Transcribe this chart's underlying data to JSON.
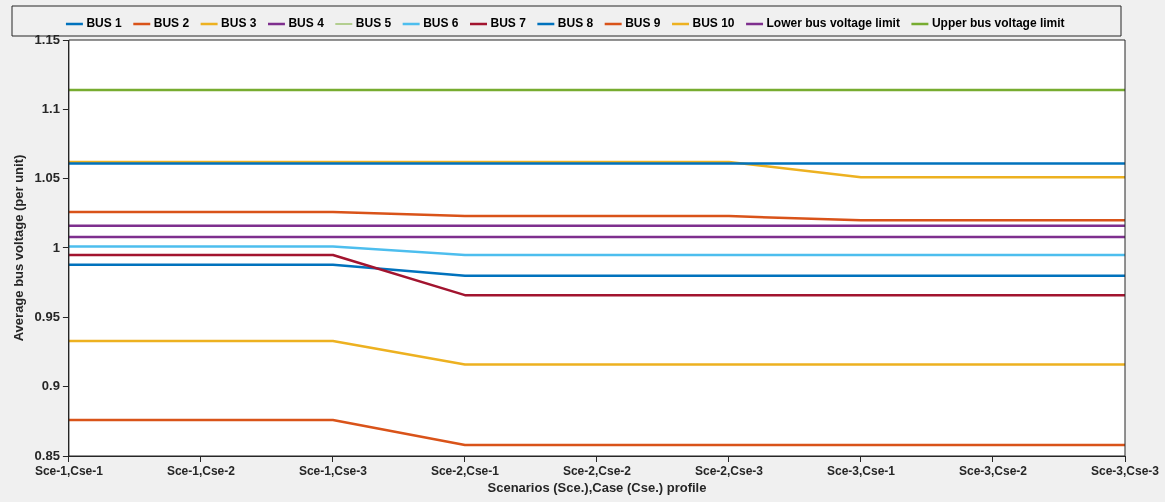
{
  "chart_data": {
    "type": "line",
    "xlabel": "Scenarios (Sce.),Case (Cse.) profile",
    "ylabel": "Average bus voltage (per unit)",
    "categories": [
      "Sce-1,Cse-1",
      "Sce-1,Cse-2",
      "Sce-1,Cse-3",
      "Sce-2,Cse-1",
      "Sce-2,Cse-2",
      "Sce-2,Cse-3",
      "Sce-3,Cse-1",
      "Sce-3,Cse-2",
      "Sce-3,Cse-3"
    ],
    "series": [
      {
        "name": "BUS 1",
        "color": "#0072bd",
        "values": [
          1.061,
          1.061,
          1.061,
          1.061,
          1.061,
          1.061,
          1.061,
          1.061,
          1.061
        ]
      },
      {
        "name": "BUS 2",
        "color": "#d95319",
        "values": [
          1.026,
          1.026,
          1.026,
          1.023,
          1.023,
          1.023,
          1.02,
          1.02,
          1.02
        ]
      },
      {
        "name": "BUS 3",
        "color": "#edb120",
        "values": [
          1.062,
          1.062,
          1.062,
          1.062,
          1.062,
          1.062,
          1.051,
          1.051,
          1.051
        ]
      },
      {
        "name": "BUS 4",
        "color": "#7e2f8e",
        "values": [
          1.016,
          1.016,
          1.016,
          1.016,
          1.016,
          1.016,
          1.016,
          1.016,
          1.016
        ]
      },
      {
        "name": "BUS 5",
        "color": "#77ac30",
        "values": [
          null,
          null,
          null,
          null,
          null,
          null,
          null,
          null,
          null
        ]
      },
      {
        "name": "BUS 6",
        "color": "#4dbeee",
        "values": [
          1.001,
          1.001,
          1.001,
          0.995,
          0.995,
          0.995,
          0.995,
          0.995,
          0.995
        ]
      },
      {
        "name": "BUS 7",
        "color": "#a2142f",
        "values": [
          0.995,
          0.995,
          0.995,
          0.966,
          0.966,
          0.966,
          0.966,
          0.966,
          0.966
        ]
      },
      {
        "name": "BUS 8",
        "color": "#0072bd",
        "values": [
          0.988,
          0.988,
          0.988,
          0.98,
          0.98,
          0.98,
          0.98,
          0.98,
          0.98
        ]
      },
      {
        "name": "BUS 9",
        "color": "#d95319",
        "values": [
          0.876,
          0.876,
          0.876,
          0.858,
          0.858,
          0.858,
          0.858,
          0.858,
          0.858
        ]
      },
      {
        "name": "BUS 10",
        "color": "#edb120",
        "values": [
          0.933,
          0.933,
          0.933,
          0.916,
          0.916,
          0.916,
          0.916,
          0.916,
          0.916
        ]
      },
      {
        "name": "Lower bus voltage limit",
        "color": "#7e2f8e",
        "values": [
          1.008,
          1.008,
          1.008,
          1.008,
          1.008,
          1.008,
          1.008,
          1.008,
          1.008
        ]
      },
      {
        "name": "Upper bus voltage limit",
        "color": "#77ac30",
        "values": [
          1.114,
          1.114,
          1.114,
          1.114,
          1.114,
          1.114,
          1.114,
          1.114,
          1.114
        ]
      }
    ],
    "ylim": [
      0.85,
      1.15
    ],
    "yticks": [
      0.85,
      0.9,
      0.95,
      1,
      1.05,
      1.1,
      1.15
    ],
    "grid": false,
    "legend": "top",
    "marker": "none",
    "line_style": "solid"
  }
}
